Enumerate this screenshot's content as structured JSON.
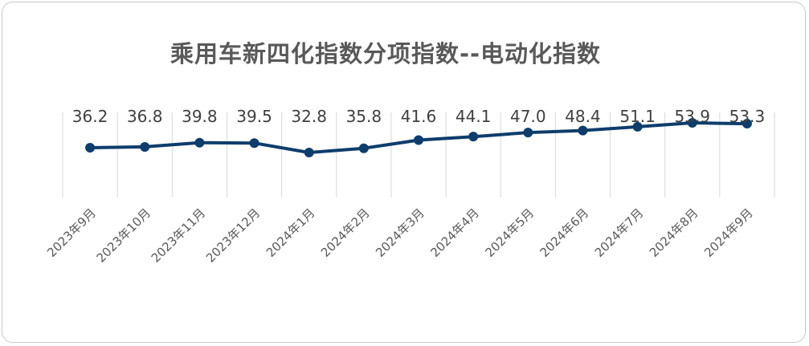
{
  "chart_data": {
    "type": "line",
    "title": "乘用车新四化指数分项指数--电动化指数",
    "xlabel": "",
    "ylabel": "",
    "categories": [
      "2023年9月",
      "2023年10月",
      "2023年11月",
      "2023年12月",
      "2024年1月",
      "2024年2月",
      "2024年3月",
      "2024年4月",
      "2024年5月",
      "2024年6月",
      "2024年7月",
      "2024年8月",
      "2024年9月"
    ],
    "series": [
      {
        "values": [
          36.2,
          36.8,
          39.8,
          39.5,
          32.8,
          35.8,
          41.6,
          44.1,
          47.0,
          48.4,
          51.1,
          53.9,
          53.3
        ]
      }
    ],
    "value_labels": [
      "36.2",
      "36.8",
      "39.8",
      "39.5",
      "32.8",
      "35.8",
      "41.6",
      "44.1",
      "47.0",
      "48.4",
      "51.1",
      "53.9",
      "53.3"
    ],
    "ylim": [
      -200,
      100
    ],
    "grid": "vertical",
    "legend": "none",
    "colors": {
      "line": "#0e3d6b",
      "grid": "#d9d9d9"
    }
  }
}
